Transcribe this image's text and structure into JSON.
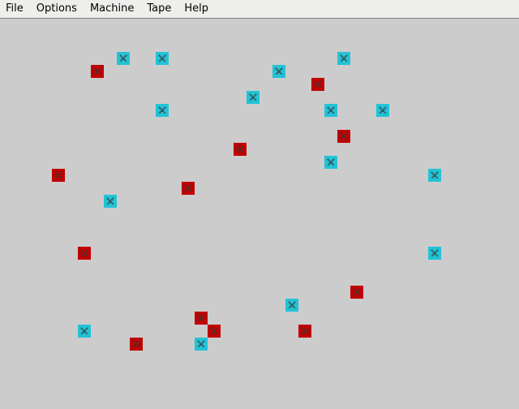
{
  "menu": {
    "items": [
      {
        "label": "File",
        "name": "menu-file"
      },
      {
        "label": "Options",
        "name": "menu-options"
      },
      {
        "label": "Machine",
        "name": "menu-machine"
      },
      {
        "label": "Tape",
        "name": "menu-tape"
      },
      {
        "label": "Help",
        "name": "menu-help"
      }
    ]
  },
  "board": {
    "background": "#cccccc",
    "cell_size": 16,
    "colors": {
      "cyan": "#22c3d6",
      "red": "#c00000",
      "mark": "#3a3a3a"
    },
    "tiles": [
      {
        "col": 9,
        "row": 4,
        "color": "cyan"
      },
      {
        "col": 12,
        "row": 4,
        "color": "cyan"
      },
      {
        "col": 26,
        "row": 4,
        "color": "cyan"
      },
      {
        "col": 7,
        "row": 5,
        "color": "red"
      },
      {
        "col": 21,
        "row": 5,
        "color": "cyan"
      },
      {
        "col": 24,
        "row": 6,
        "color": "red"
      },
      {
        "col": 19,
        "row": 7,
        "color": "cyan"
      },
      {
        "col": 12,
        "row": 8,
        "color": "cyan"
      },
      {
        "col": 25,
        "row": 8,
        "color": "cyan"
      },
      {
        "col": 29,
        "row": 8,
        "color": "cyan"
      },
      {
        "col": 26,
        "row": 10,
        "color": "red"
      },
      {
        "col": 18,
        "row": 11,
        "color": "red"
      },
      {
        "col": 25,
        "row": 12,
        "color": "cyan"
      },
      {
        "col": 4,
        "row": 13,
        "color": "red"
      },
      {
        "col": 33,
        "row": 13,
        "color": "cyan"
      },
      {
        "col": 14,
        "row": 14,
        "color": "red"
      },
      {
        "col": 8,
        "row": 15,
        "color": "cyan"
      },
      {
        "col": 6,
        "row": 19,
        "color": "red"
      },
      {
        "col": 33,
        "row": 19,
        "color": "cyan"
      },
      {
        "col": 27,
        "row": 22,
        "color": "red"
      },
      {
        "col": 22,
        "row": 23,
        "color": "cyan"
      },
      {
        "col": 15,
        "row": 24,
        "color": "red"
      },
      {
        "col": 6,
        "row": 25,
        "color": "cyan"
      },
      {
        "col": 16,
        "row": 25,
        "color": "red"
      },
      {
        "col": 23,
        "row": 25,
        "color": "red"
      },
      {
        "col": 10,
        "row": 26,
        "color": "red"
      },
      {
        "col": 15,
        "row": 26,
        "color": "cyan"
      }
    ]
  }
}
